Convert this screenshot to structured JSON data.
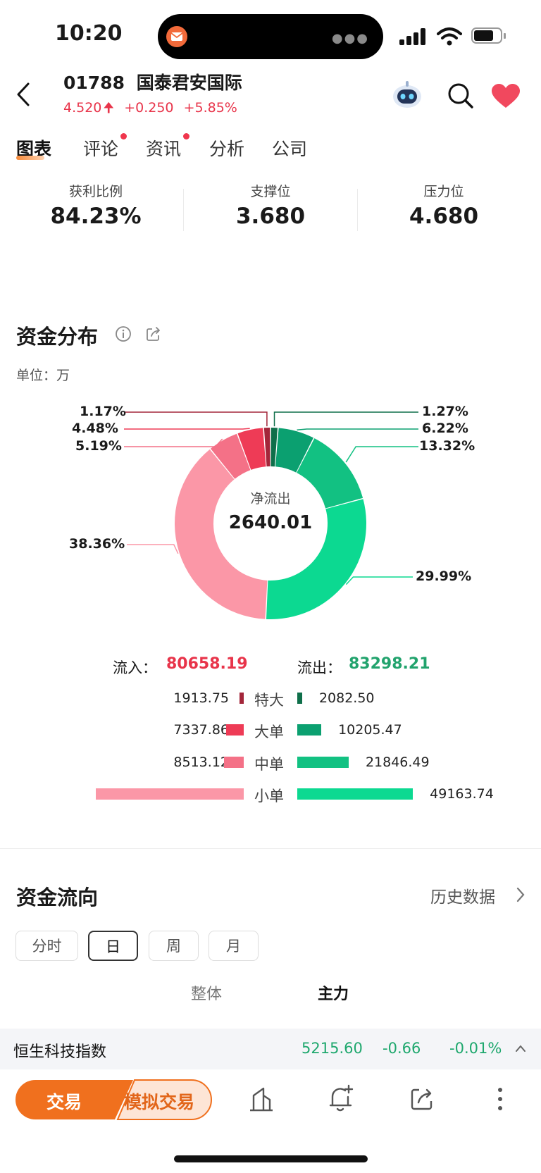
{
  "status_bar": {
    "time": "10:20"
  },
  "header": {
    "code": "01788",
    "name": "国泰君安国际",
    "price": "4.520",
    "change": "+0.250",
    "change_pct": "+5.85%"
  },
  "tabs": [
    {
      "label": "图表",
      "active": true,
      "dot": false
    },
    {
      "label": "评论",
      "active": false,
      "dot": true
    },
    {
      "label": "资讯",
      "active": false,
      "dot": true
    },
    {
      "label": "分析",
      "active": false,
      "dot": false
    },
    {
      "label": "公司",
      "active": false,
      "dot": false
    }
  ],
  "stats": [
    {
      "label": "获利比例",
      "value": "84.23%"
    },
    {
      "label": "支撑位",
      "value": "3.680"
    },
    {
      "label": "压力位",
      "value": "4.680"
    }
  ],
  "fund_distribution": {
    "title": "资金分布",
    "unit": "单位：万",
    "center_label": "净流出",
    "center_value": "2640.01",
    "inflow_label": "流入：",
    "inflow_value": "80658.19",
    "outflow_label": "流出：",
    "outflow_value": "83298.21",
    "rows": [
      {
        "category": "特大",
        "inflow": "1913.75",
        "outflow": "2082.50"
      },
      {
        "category": "大单",
        "inflow": "7337.86",
        "outflow": "10205.47"
      },
      {
        "category": "中单",
        "inflow": "8513.12",
        "outflow": "21846.49"
      },
      {
        "category": "小单",
        "inflow": "62893.46",
        "outflow": "49163.74"
      }
    ],
    "colors": {
      "in_super": "#a3263a",
      "in_large": "#ee3b56",
      "in_medium": "#f47187",
      "in_small": "#fb97a7",
      "out_super": "#0f6f4a",
      "out_large": "#0ba070",
      "out_medium": "#12c182",
      "out_small": "#0cd991"
    }
  },
  "chart_data": {
    "type": "pie",
    "categories": [
      "特大流出",
      "大单流出",
      "中单流出",
      "小单流出",
      "小单流入",
      "中单流入",
      "大单流入",
      "特大流入"
    ],
    "values": [
      1.27,
      6.22,
      13.32,
      29.99,
      38.36,
      5.19,
      4.48,
      1.17
    ],
    "labels": [
      "1.27%",
      "6.22%",
      "13.32%",
      "29.99%",
      "38.36%",
      "5.19%",
      "4.48%",
      "1.17%"
    ]
  },
  "fund_flow": {
    "title": "资金流向",
    "history_link": "历史数据",
    "periods": [
      {
        "label": "分时",
        "active": false
      },
      {
        "label": "日",
        "active": true
      },
      {
        "label": "周",
        "active": false
      },
      {
        "label": "月",
        "active": false
      }
    ],
    "modes": [
      {
        "label": "整体",
        "active": false
      },
      {
        "label": "主力",
        "active": true
      }
    ]
  },
  "ticker": {
    "name": "恒生科技指数",
    "value": "5215.60",
    "change": "-0.66",
    "change_pct": "-0.01%"
  },
  "bottom_bar": {
    "trade_label": "交易",
    "sim_trade_label": "模拟交易"
  }
}
